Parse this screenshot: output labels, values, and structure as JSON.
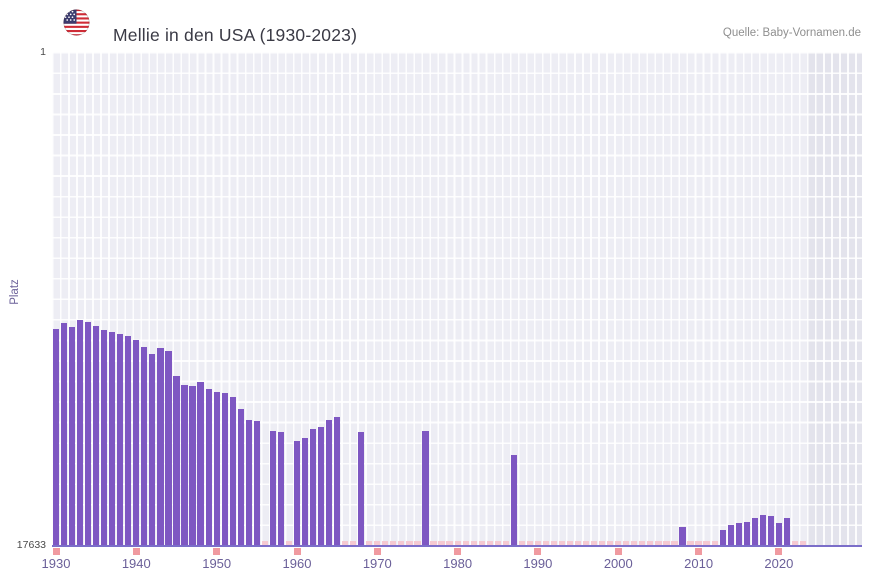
{
  "header": {
    "title": "Mellie in den USA (1930-2023)",
    "source": "Quelle: Baby-Vornamen.de",
    "flag_icon": "us-flag-icon"
  },
  "chart_data": {
    "type": "bar",
    "title": "Mellie in den USA (1930-2023)",
    "ylabel": "Platz",
    "xlabel": "",
    "y_axis": {
      "best": 1,
      "worst": 17633,
      "inverted": true,
      "top_tick_label": "1",
      "bottom_tick_label": "17633"
    },
    "x_range": [
      1930,
      2023
    ],
    "x_ticks": [
      1930,
      1940,
      1950,
      1960,
      1970,
      1980,
      1990,
      2000,
      2010,
      2020
    ],
    "grid": true,
    "legend": "none",
    "recent_years_band": true,
    "points": [
      {
        "year": 1930,
        "rank": 9900
      },
      {
        "year": 1931,
        "rank": 9700
      },
      {
        "year": 1932,
        "rank": 9850
      },
      {
        "year": 1933,
        "rank": 9600
      },
      {
        "year": 1934,
        "rank": 9650
      },
      {
        "year": 1935,
        "rank": 9800
      },
      {
        "year": 1936,
        "rank": 9950
      },
      {
        "year": 1937,
        "rank": 10000
      },
      {
        "year": 1938,
        "rank": 10100
      },
      {
        "year": 1939,
        "rank": 10150
      },
      {
        "year": 1940,
        "rank": 10300
      },
      {
        "year": 1941,
        "rank": 10550
      },
      {
        "year": 1942,
        "rank": 10800
      },
      {
        "year": 1943,
        "rank": 10600
      },
      {
        "year": 1944,
        "rank": 10700
      },
      {
        "year": 1945,
        "rank": 11600
      },
      {
        "year": 1946,
        "rank": 11900
      },
      {
        "year": 1947,
        "rank": 11950
      },
      {
        "year": 1948,
        "rank": 11800
      },
      {
        "year": 1949,
        "rank": 12050
      },
      {
        "year": 1950,
        "rank": 12150
      },
      {
        "year": 1951,
        "rank": 12200
      },
      {
        "year": 1952,
        "rank": 12350
      },
      {
        "year": 1953,
        "rank": 12750
      },
      {
        "year": 1954,
        "rank": 13150
      },
      {
        "year": 1955,
        "rank": 13200
      },
      {
        "year": 1956,
        "rank": null
      },
      {
        "year": 1957,
        "rank": 13550
      },
      {
        "year": 1958,
        "rank": 13600
      },
      {
        "year": 1959,
        "rank": null
      },
      {
        "year": 1960,
        "rank": 13900
      },
      {
        "year": 1961,
        "rank": 13800
      },
      {
        "year": 1962,
        "rank": 13500
      },
      {
        "year": 1963,
        "rank": 13400
      },
      {
        "year": 1964,
        "rank": 13150
      },
      {
        "year": 1965,
        "rank": 13050
      },
      {
        "year": 1966,
        "rank": null
      },
      {
        "year": 1967,
        "rank": null
      },
      {
        "year": 1968,
        "rank": 13600
      },
      {
        "year": 1969,
        "rank": null
      },
      {
        "year": 1970,
        "rank": null
      },
      {
        "year": 1971,
        "rank": null
      },
      {
        "year": 1972,
        "rank": null
      },
      {
        "year": 1973,
        "rank": null
      },
      {
        "year": 1974,
        "rank": null
      },
      {
        "year": 1975,
        "rank": null
      },
      {
        "year": 1976,
        "rank": 13550
      },
      {
        "year": 1977,
        "rank": null
      },
      {
        "year": 1978,
        "rank": null
      },
      {
        "year": 1979,
        "rank": null
      },
      {
        "year": 1980,
        "rank": null
      },
      {
        "year": 1981,
        "rank": null
      },
      {
        "year": 1982,
        "rank": null
      },
      {
        "year": 1983,
        "rank": null
      },
      {
        "year": 1984,
        "rank": null
      },
      {
        "year": 1985,
        "rank": null
      },
      {
        "year": 1986,
        "rank": null
      },
      {
        "year": 1987,
        "rank": 14400
      },
      {
        "year": 1988,
        "rank": null
      },
      {
        "year": 1989,
        "rank": null
      },
      {
        "year": 1990,
        "rank": null
      },
      {
        "year": 1991,
        "rank": null
      },
      {
        "year": 1992,
        "rank": null
      },
      {
        "year": 1993,
        "rank": null
      },
      {
        "year": 1994,
        "rank": null
      },
      {
        "year": 1995,
        "rank": null
      },
      {
        "year": 1996,
        "rank": null
      },
      {
        "year": 1997,
        "rank": null
      },
      {
        "year": 1998,
        "rank": null
      },
      {
        "year": 1999,
        "rank": null
      },
      {
        "year": 2000,
        "rank": null
      },
      {
        "year": 2001,
        "rank": null
      },
      {
        "year": 2002,
        "rank": null
      },
      {
        "year": 2003,
        "rank": null
      },
      {
        "year": 2004,
        "rank": null
      },
      {
        "year": 2005,
        "rank": null
      },
      {
        "year": 2006,
        "rank": null
      },
      {
        "year": 2007,
        "rank": null
      },
      {
        "year": 2008,
        "rank": 17000
      },
      {
        "year": 2009,
        "rank": null
      },
      {
        "year": 2010,
        "rank": null
      },
      {
        "year": 2011,
        "rank": null
      },
      {
        "year": 2012,
        "rank": null
      },
      {
        "year": 2013,
        "rank": 17100
      },
      {
        "year": 2014,
        "rank": 16900
      },
      {
        "year": 2015,
        "rank": 16850
      },
      {
        "year": 2016,
        "rank": 16800
      },
      {
        "year": 2017,
        "rank": 16650
      },
      {
        "year": 2018,
        "rank": 16550
      },
      {
        "year": 2019,
        "rank": 16600
      },
      {
        "year": 2020,
        "rank": 16850
      },
      {
        "year": 2021,
        "rank": 16650
      },
      {
        "year": 2022,
        "rank": null
      },
      {
        "year": 2023,
        "rank": null
      }
    ]
  },
  "colors": {
    "bar": "#7e57c2",
    "plot_background": "#ededf4",
    "recent_band": "#e3e3ec",
    "axis_line": "#7b6ec9",
    "tick_mark": "#f09aa0",
    "unranked_marker": "#f5c9d2",
    "tick_label": "#6b6099",
    "title_text": "#3a3a45",
    "source_text": "#8f8f8f"
  }
}
